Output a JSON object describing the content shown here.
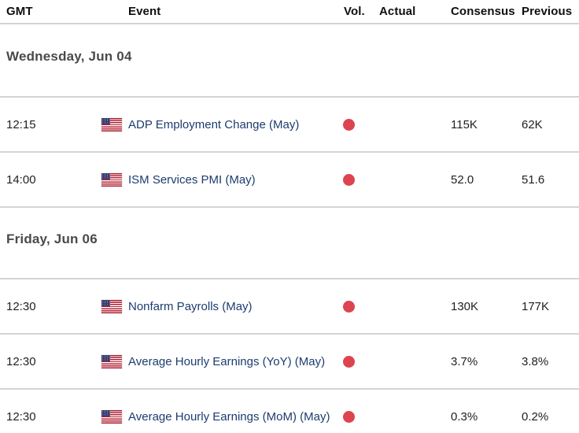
{
  "table": {
    "columns": {
      "gmt": "GMT",
      "event": "Event",
      "vol": "Vol.",
      "actual": "Actual",
      "consensus": "Consensus",
      "previous": "Previous"
    },
    "sections": [
      {
        "date": "Wednesday, Jun 04",
        "rows": [
          {
            "gmt": "12:15",
            "country": "United States",
            "event": "ADP Employment Change (May)",
            "volatility": "high",
            "actual": "",
            "consensus": "115K",
            "previous": "62K"
          },
          {
            "gmt": "14:00",
            "country": "United States",
            "event": "ISM Services PMI (May)",
            "volatility": "high",
            "actual": "",
            "consensus": "52.0",
            "previous": "51.6"
          }
        ]
      },
      {
        "date": "Friday, Jun 06",
        "rows": [
          {
            "gmt": "12:30",
            "country": "United States",
            "event": "Nonfarm Payrolls (May)",
            "volatility": "high",
            "actual": "",
            "consensus": "130K",
            "previous": "177K"
          },
          {
            "gmt": "12:30",
            "country": "United States",
            "event": "Average Hourly Earnings (YoY) (May)",
            "volatility": "high",
            "actual": "",
            "consensus": "3.7%",
            "previous": "3.8%"
          },
          {
            "gmt": "12:30",
            "country": "United States",
            "event": "Average Hourly Earnings (MoM) (May)",
            "volatility": "high",
            "actual": "",
            "consensus": "0.3%",
            "previous": "0.2%"
          }
        ]
      }
    ],
    "colors": {
      "event_link": "#1d3c6f",
      "volatility_dot": "#dd4450",
      "divider": "#d4d4d4",
      "date_header_text": "#4a4a4a",
      "header_text": "#101010",
      "flag_canton": "#3c3b6e",
      "flag_stripe": "#b22234"
    }
  }
}
